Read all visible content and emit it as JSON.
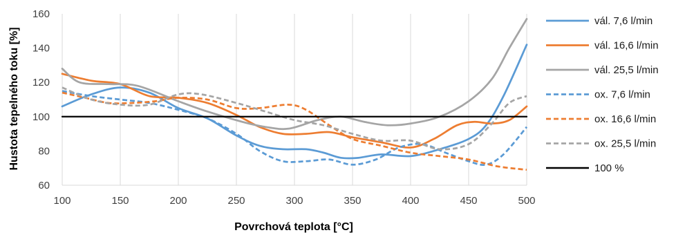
{
  "chart_data": {
    "type": "line",
    "xlabel": "Povrchová teplota [°C]",
    "ylabel": "Hustota tepelného toku [%]",
    "xlim": [
      100,
      500
    ],
    "ylim": [
      60,
      160
    ],
    "xticks": [
      "100",
      "150",
      "200",
      "250",
      "300",
      "350",
      "400",
      "450",
      "500"
    ],
    "yticks": [
      "60",
      "80",
      "100",
      "120",
      "140",
      "160"
    ],
    "grid": "vertical",
    "legend_position": "right",
    "series": [
      {
        "name": "vál. 7,6 l/min",
        "color": "#5b9bd5",
        "dash": "solid",
        "x": [
          100,
          125,
          150,
          175,
          200,
          225,
          250,
          270,
          290,
          310,
          325,
          340,
          355,
          375,
          400,
          425,
          450,
          465,
          480,
          500
        ],
        "y": [
          106,
          113,
          117,
          114,
          105,
          99,
          89,
          83,
          81,
          81,
          79,
          76,
          76,
          78,
          77,
          81,
          87,
          95,
          112,
          142
        ]
      },
      {
        "name": "vál. 16,6 l/min",
        "color": "#ed7d31",
        "dash": "solid",
        "x": [
          100,
          125,
          150,
          175,
          200,
          225,
          250,
          270,
          290,
          310,
          330,
          350,
          375,
          400,
          420,
          440,
          455,
          470,
          485,
          500
        ],
        "y": [
          125,
          121,
          119,
          112,
          111,
          108,
          101,
          94,
          90,
          90,
          91,
          88,
          85,
          82,
          87,
          95,
          97,
          96,
          98,
          106
        ]
      },
      {
        "name": "vál. 25,5 l/min",
        "color": "#a5a5a5",
        "dash": "solid",
        "x": [
          100,
          115,
          140,
          165,
          200,
          225,
          255,
          275,
          295,
          320,
          340,
          360,
          380,
          400,
          425,
          450,
          470,
          485,
          500
        ],
        "y": [
          128,
          120,
          119,
          118,
          109,
          103,
          97,
          94,
          93,
          98,
          100,
          97,
          95,
          96,
          100,
          109,
          122,
          140,
          157
        ]
      },
      {
        "name": "ox. 7,6 l/min",
        "color": "#5b9bd5",
        "dash": "dashed",
        "x": [
          100,
          125,
          150,
          175,
          200,
          225,
          250,
          270,
          290,
          310,
          330,
          350,
          370,
          390,
          410,
          430,
          450,
          465,
          480,
          500
        ],
        "y": [
          115,
          112,
          110,
          108,
          104,
          99,
          90,
          80,
          74,
          74,
          75,
          72,
          75,
          82,
          84,
          79,
          74,
          72,
          78,
          94
        ]
      },
      {
        "name": "ox. 16,6 l/min",
        "color": "#ed7d31",
        "dash": "dashed",
        "x": [
          100,
          120,
          140,
          160,
          180,
          200,
          225,
          250,
          270,
          295,
          310,
          330,
          350,
          375,
          400,
          425,
          450,
          475,
          500
        ],
        "y": [
          114,
          111,
          108,
          108,
          109,
          111,
          110,
          105,
          105,
          107,
          104,
          95,
          87,
          83,
          79,
          77,
          75,
          71,
          69
        ]
      },
      {
        "name": "ox. 25,5 l/min",
        "color": "#a5a5a5",
        "dash": "dashed",
        "x": [
          100,
          125,
          150,
          175,
          200,
          220,
          250,
          275,
          300,
          325,
          350,
          375,
          400,
          425,
          450,
          470,
          485,
          500
        ],
        "y": [
          117,
          110,
          107,
          107,
          113,
          113,
          108,
          103,
          98,
          95,
          90,
          86,
          86,
          81,
          84,
          96,
          108,
          112
        ]
      },
      {
        "name": "100 %",
        "color": "#000000",
        "dash": "solid",
        "x": [
          100,
          500
        ],
        "y": [
          100,
          100
        ]
      }
    ]
  }
}
